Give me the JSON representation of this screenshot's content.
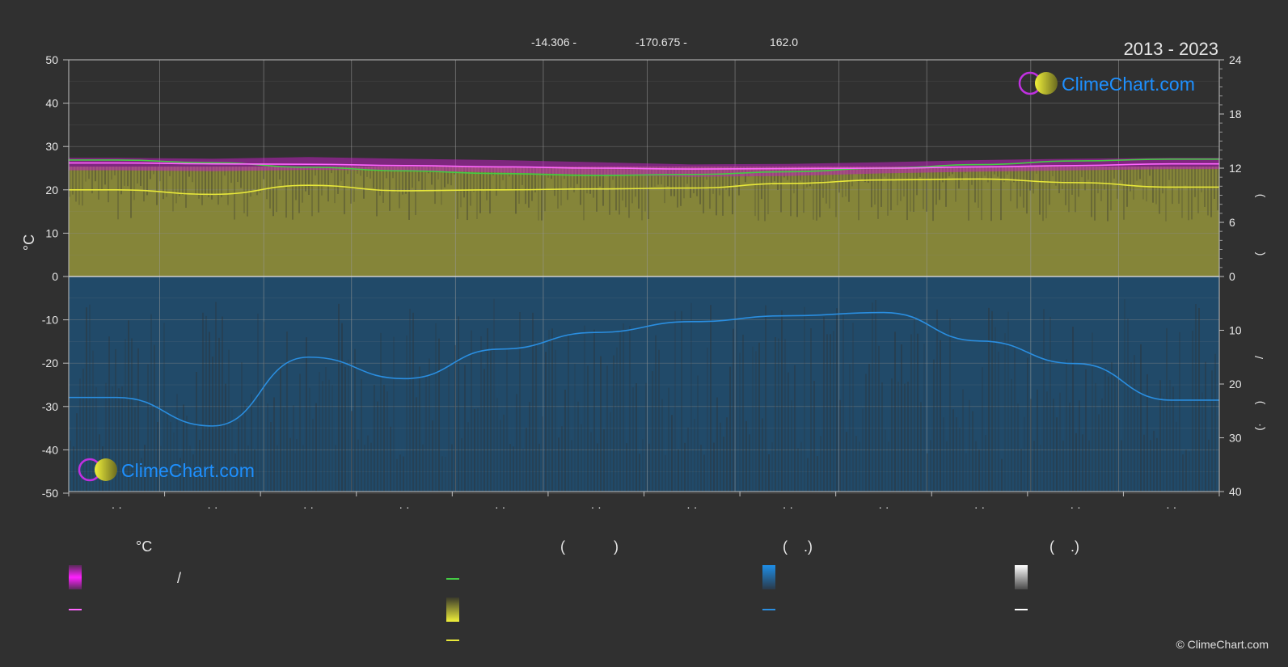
{
  "header": {
    "coords": [
      "-14.306 -",
      "-170.675 -",
      "162.0"
    ],
    "period": "2013 - 2023"
  },
  "logo": {
    "text": "ClimeChart.com"
  },
  "copyright": "© ClimeChart.com",
  "axes": {
    "left_label": "°C",
    "left_ticks": [
      "50",
      "40",
      "30",
      "20",
      "10",
      "0",
      "-10",
      "-20",
      "-30",
      "-40",
      "-50"
    ],
    "right_top_ticks": [
      "24",
      "18",
      "12",
      "6",
      "0"
    ],
    "right_bottom_ticks": [
      "10",
      "20",
      "30",
      "40"
    ],
    "right_label_top_fragments": [
      ")",
      "("
    ],
    "right_label_bottom_fragments": [
      "/",
      ")",
      "(·"
    ],
    "x_tick_labels": [
      "· ·",
      "· ·",
      "· ·",
      "· ·",
      "· ·",
      "· ·",
      "· ·",
      "· ·",
      "· ·",
      "· ·",
      "· ·",
      "· ·"
    ]
  },
  "legend": {
    "col1_title": "°C",
    "col1_slash": "/",
    "col2_title": "(            )",
    "col3_title": "(    .)",
    "col4_title": "(    .)"
  },
  "colors": {
    "background": "#303030",
    "temp_band": "#e000e0",
    "temp_avg": "#ff66ff",
    "daylight": "#44cc44",
    "sunshine": "#8f8f3a",
    "sunshine_avg": "#e8e83a",
    "precip": "#1e5f8f",
    "precip_avg": "#2a8ee0",
    "snow": "#ffffff",
    "logo_text": "#1e90ff"
  },
  "chart_data": {
    "type": "line",
    "x": [
      "Jan",
      "Feb",
      "Mar",
      "Apr",
      "May",
      "Jun",
      "Jul",
      "Aug",
      "Sep",
      "Oct",
      "Nov",
      "Dec"
    ],
    "ylim_left": [
      -50,
      50
    ],
    "ylim_right_top": [
      0,
      24
    ],
    "ylim_right_bottom": [
      0,
      40
    ],
    "series": [
      {
        "key": "temp_max",
        "axis": "left",
        "values": [
          27.0,
          26.8,
          27.2,
          26.8,
          26.5,
          26.0,
          25.5,
          25.6,
          26.0,
          26.5,
          26.8,
          27.0
        ]
      },
      {
        "key": "temp_min",
        "axis": "left",
        "values": [
          24.5,
          24.3,
          24.6,
          24.5,
          24.0,
          23.5,
          23.0,
          23.2,
          23.8,
          24.2,
          24.5,
          24.8
        ]
      },
      {
        "key": "temp_avg",
        "axis": "left",
        "values": [
          26.2,
          26.0,
          25.9,
          25.6,
          25.3,
          25.0,
          24.8,
          24.9,
          25.0,
          25.3,
          25.6,
          26.0
        ]
      },
      {
        "key": "daylight",
        "axis": "right_top",
        "values": [
          12.9,
          12.6,
          12.1,
          11.7,
          11.4,
          11.2,
          11.3,
          11.6,
          12.0,
          12.4,
          12.8,
          13.0
        ]
      },
      {
        "key": "sunshine",
        "axis": "right_top",
        "values": [
          9.6,
          9.1,
          10.1,
          9.5,
          9.6,
          9.7,
          9.8,
          10.3,
          10.7,
          10.8,
          10.4,
          9.9
        ]
      },
      {
        "key": "precip",
        "axis": "right_bottom",
        "values": [
          22.5,
          27.8,
          15.0,
          19.0,
          13.5,
          10.4,
          8.4,
          7.3,
          6.7,
          12.0,
          16.2,
          23.0
        ]
      }
    ]
  }
}
